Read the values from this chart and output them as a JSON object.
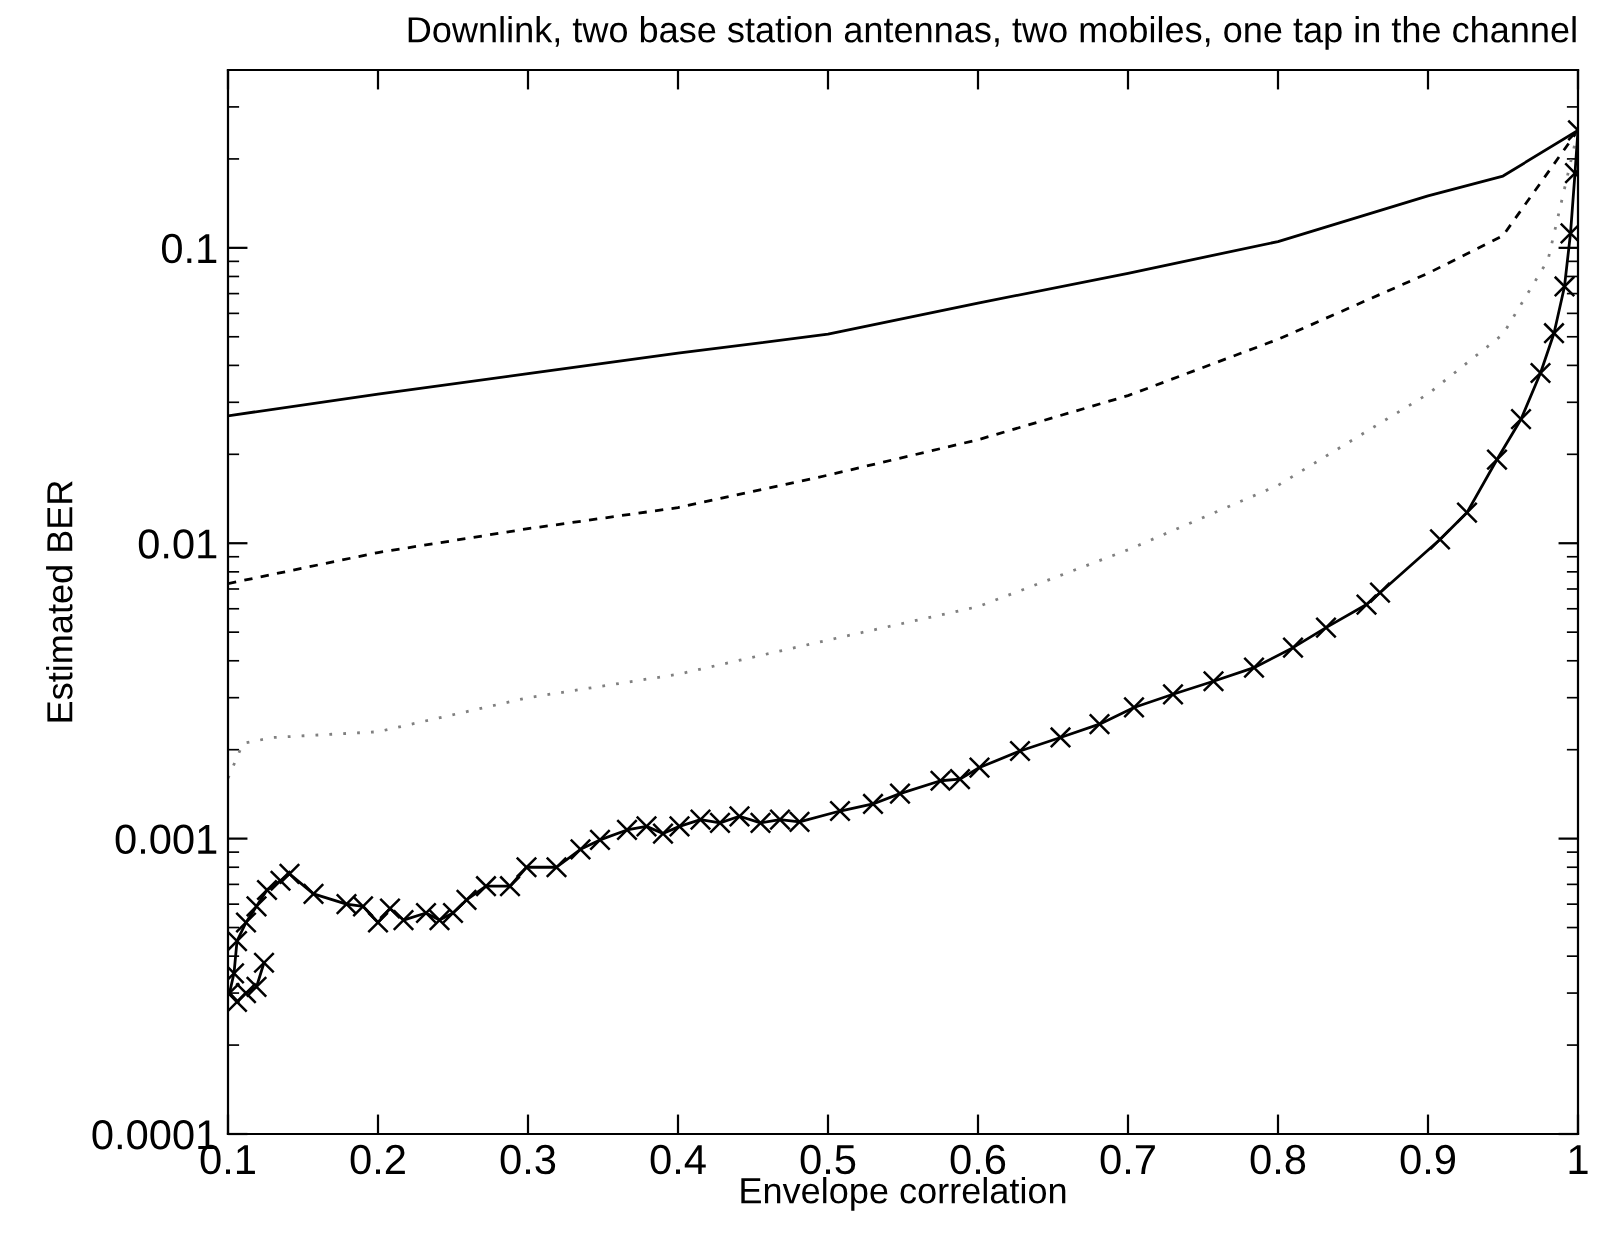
{
  "chart_data": {
    "type": "line",
    "title": "Downlink, two base station antennas, two mobiles, one tap in the channel",
    "xlabel": "Envelope correlation",
    "ylabel": "Estimated BER",
    "log": "y",
    "grid": false,
    "legend": false,
    "xlim": [
      0.1,
      1
    ],
    "xticks": [
      0.1,
      0.2,
      0.3,
      0.4,
      0.5,
      0.6,
      0.7,
      0.8,
      0.9,
      1
    ],
    "ylim": [
      0.0001,
      0.4
    ],
    "yticks": [
      0.0001,
      0.001,
      0.01,
      0.1
    ],
    "series": [
      {
        "color": "#000000",
        "line_style": "solid",
        "marker": "none",
        "x": [
          0.1,
          0.2,
          0.3,
          0.4,
          0.5,
          0.6,
          0.7,
          0.8,
          0.9,
          0.95,
          1
        ],
        "values": [
          0.027,
          0.032,
          0.0375,
          0.044,
          0.051,
          0.065,
          0.082,
          0.105,
          0.15,
          0.175,
          0.25
        ]
      },
      {
        "color": "#000000",
        "line_style": "dashed",
        "marker": "none",
        "x": [
          0.1,
          0.2,
          0.3,
          0.4,
          0.5,
          0.6,
          0.7,
          0.8,
          0.9,
          0.95,
          1
        ],
        "values": [
          0.0073,
          0.0093,
          0.0112,
          0.0132,
          0.017,
          0.0224,
          0.0316,
          0.049,
          0.082,
          0.11,
          0.25
        ]
      },
      {
        "color": "#808080",
        "line_style": "dotted",
        "marker": "none",
        "x": [
          0.1,
          0.11,
          0.13,
          0.2,
          0.3,
          0.4,
          0.5,
          0.6,
          0.7,
          0.8,
          0.9,
          0.95,
          0.98,
          1
        ],
        "values": [
          0.0016,
          0.0021,
          0.0022,
          0.0023,
          0.003,
          0.0036,
          0.0047,
          0.0061,
          0.0095,
          0.0157,
          0.032,
          0.051,
          0.091,
          0.25
        ]
      },
      {
        "color": "#000000",
        "line_style": "solid",
        "marker": "cross",
        "x": [
          0.124,
          0.119,
          0.112,
          0.106,
          0.101,
          0.104,
          0.106,
          0.112,
          0.119,
          0.126,
          0.135,
          0.141,
          0.157,
          0.179,
          0.19,
          0.2,
          0.208,
          0.217,
          0.232,
          0.241,
          0.25,
          0.259,
          0.272,
          0.288,
          0.299,
          0.319,
          0.335,
          0.348,
          0.366,
          0.379,
          0.39,
          0.401,
          0.415,
          0.428,
          0.441,
          0.455,
          0.468,
          0.481,
          0.508,
          0.53,
          0.548,
          0.575,
          0.588,
          0.601,
          0.628,
          0.655,
          0.681,
          0.704,
          0.73,
          0.757,
          0.784,
          0.81,
          0.832,
          0.859,
          0.868,
          0.908,
          0.926,
          0.946,
          0.962,
          0.975,
          0.984,
          0.991,
          0.995,
          0.998,
          1
        ],
        "values": [
          0.00038,
          0.000315,
          0.0003,
          0.00028,
          0.0003,
          0.00035,
          0.00045,
          0.00052,
          0.00059,
          0.00067,
          0.00072,
          0.00076,
          0.00065,
          0.0006,
          0.00059,
          0.00052,
          0.00058,
          0.00053,
          0.00056,
          0.00053,
          0.00056,
          0.00062,
          0.00069,
          0.00069,
          0.0008,
          0.0008,
          0.00092,
          0.00099,
          0.00107,
          0.0011,
          0.00104,
          0.0011,
          0.00116,
          0.00113,
          0.00119,
          0.00113,
          0.00116,
          0.00114,
          0.00124,
          0.00131,
          0.00142,
          0.00157,
          0.00159,
          0.00174,
          0.00198,
          0.0022,
          0.00244,
          0.00278,
          0.00308,
          0.00341,
          0.00379,
          0.00443,
          0.00518,
          0.0062,
          0.0068,
          0.0103,
          0.0127,
          0.0192,
          0.0263,
          0.0377,
          0.0514,
          0.074,
          0.112,
          0.179,
          0.25
        ]
      }
    ]
  }
}
